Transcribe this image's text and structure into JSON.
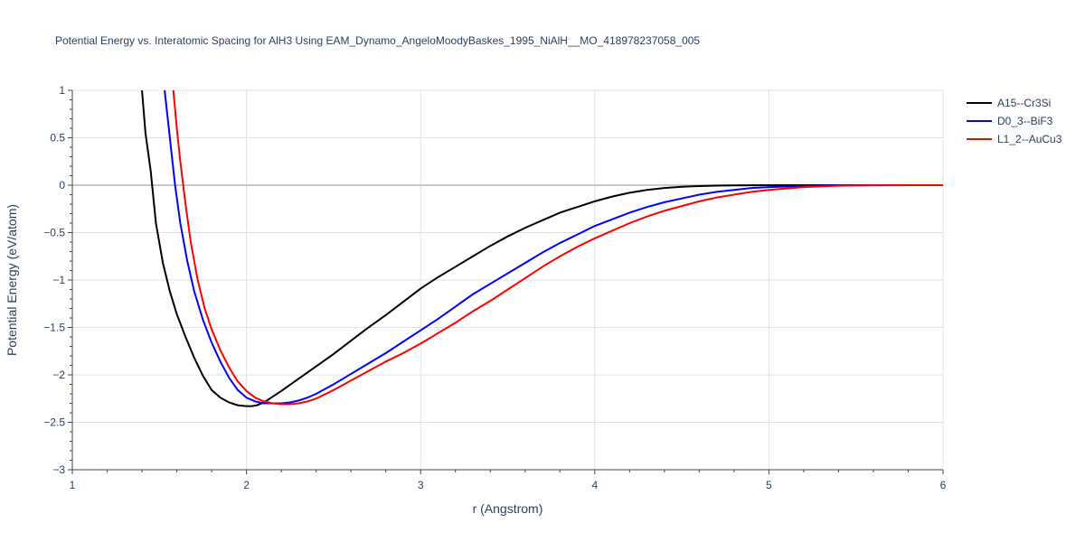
{
  "chart_data": {
    "type": "line",
    "title": "Potential Energy vs. Interatomic Spacing for AlH3 Using EAM_Dynamo_AngeloMoodyBaskes_1995_NiAlH__MO_418978237058_005",
    "xlabel": "r (Angstrom)",
    "ylabel": "Potential Energy (eV/atom)",
    "xlim": [
      1,
      6
    ],
    "ylim": [
      -3,
      1
    ],
    "x_ticks": [
      1,
      2,
      3,
      4,
      5,
      6
    ],
    "x_tick_labels": [
      "1",
      "2",
      "3",
      "4",
      "5",
      "6"
    ],
    "y_ticks": [
      -3,
      -2.5,
      -2,
      -1.5,
      -1,
      -0.5,
      0,
      0.5,
      1
    ],
    "y_tick_labels": [
      "−3",
      "−2.5",
      "−2",
      "−1.5",
      "−1",
      "−0.5",
      "0",
      "0.5",
      "1"
    ],
    "grid": true,
    "legend_position": "top-right",
    "series": [
      {
        "name": "A15--Cr3Si",
        "color": "#000000",
        "x": [
          1.4,
          1.42,
          1.45,
          1.48,
          1.52,
          1.56,
          1.6,
          1.65,
          1.7,
          1.75,
          1.8,
          1.85,
          1.9,
          1.95,
          2.0,
          2.03,
          2.06,
          2.1,
          2.15,
          2.2,
          2.3,
          2.4,
          2.5,
          2.6,
          2.7,
          2.8,
          2.9,
          3.0,
          3.1,
          3.2,
          3.3,
          3.4,
          3.5,
          3.6,
          3.7,
          3.8,
          3.9,
          4.0,
          4.1,
          4.2,
          4.3,
          4.4,
          4.5,
          4.6,
          4.7,
          4.8,
          4.9,
          5.0,
          5.2,
          5.4,
          5.6,
          5.8,
          6.0
        ],
        "y": [
          1.0,
          0.55,
          0.15,
          -0.4,
          -0.82,
          -1.12,
          -1.36,
          -1.6,
          -1.82,
          -2.01,
          -2.16,
          -2.24,
          -2.29,
          -2.32,
          -2.33,
          -2.33,
          -2.32,
          -2.29,
          -2.23,
          -2.17,
          -2.04,
          -1.91,
          -1.78,
          -1.64,
          -1.5,
          -1.37,
          -1.23,
          -1.09,
          -0.97,
          -0.86,
          -0.75,
          -0.64,
          -0.54,
          -0.45,
          -0.37,
          -0.29,
          -0.23,
          -0.17,
          -0.12,
          -0.08,
          -0.05,
          -0.03,
          -0.017,
          -0.009,
          -0.005,
          -0.002,
          -0.001,
          0.0,
          0.0,
          0.0,
          0.0,
          0.0,
          0.0
        ]
      },
      {
        "name": "D0_3--BiF3",
        "color": "#0000ff",
        "x": [
          1.53,
          1.56,
          1.59,
          1.62,
          1.66,
          1.7,
          1.75,
          1.8,
          1.85,
          1.9,
          1.95,
          2.0,
          2.05,
          2.1,
          2.15,
          2.2,
          2.25,
          2.3,
          2.35,
          2.4,
          2.5,
          2.6,
          2.7,
          2.8,
          2.9,
          3.0,
          3.1,
          3.2,
          3.3,
          3.4,
          3.5,
          3.6,
          3.7,
          3.8,
          3.9,
          4.0,
          4.1,
          4.2,
          4.3,
          4.4,
          4.5,
          4.6,
          4.7,
          4.8,
          4.9,
          5.0,
          5.2,
          5.4,
          5.6,
          5.8,
          6.0
        ],
        "y": [
          1.0,
          0.5,
          0.0,
          -0.4,
          -0.8,
          -1.12,
          -1.42,
          -1.66,
          -1.86,
          -2.03,
          -2.16,
          -2.24,
          -2.28,
          -2.3,
          -2.3,
          -2.3,
          -2.29,
          -2.27,
          -2.24,
          -2.2,
          -2.1,
          -1.99,
          -1.88,
          -1.77,
          -1.65,
          -1.53,
          -1.41,
          -1.28,
          -1.15,
          -1.04,
          -0.93,
          -0.82,
          -0.71,
          -0.61,
          -0.52,
          -0.43,
          -0.36,
          -0.29,
          -0.23,
          -0.18,
          -0.14,
          -0.1,
          -0.07,
          -0.05,
          -0.03,
          -0.02,
          -0.008,
          -0.003,
          -0.001,
          0.0,
          0.0
        ]
      },
      {
        "name": "L1_2--AuCu3",
        "color": "#ff0000",
        "x": [
          1.58,
          1.6,
          1.62,
          1.65,
          1.68,
          1.72,
          1.76,
          1.8,
          1.85,
          1.9,
          1.95,
          2.0,
          2.05,
          2.1,
          2.15,
          2.2,
          2.25,
          2.3,
          2.35,
          2.4,
          2.5,
          2.6,
          2.7,
          2.8,
          2.9,
          3.0,
          3.1,
          3.2,
          3.3,
          3.4,
          3.5,
          3.6,
          3.7,
          3.8,
          3.9,
          4.0,
          4.1,
          4.2,
          4.3,
          4.4,
          4.5,
          4.6,
          4.7,
          4.8,
          4.9,
          5.0,
          5.2,
          5.4,
          5.6,
          5.8,
          6.0
        ],
        "y": [
          1.0,
          0.6,
          0.25,
          -0.2,
          -0.6,
          -1.0,
          -1.3,
          -1.52,
          -1.74,
          -1.92,
          -2.07,
          -2.17,
          -2.24,
          -2.28,
          -2.3,
          -2.31,
          -2.31,
          -2.3,
          -2.28,
          -2.25,
          -2.16,
          -2.06,
          -1.96,
          -1.86,
          -1.77,
          -1.67,
          -1.56,
          -1.45,
          -1.33,
          -1.22,
          -1.1,
          -0.98,
          -0.86,
          -0.75,
          -0.65,
          -0.56,
          -0.48,
          -0.4,
          -0.33,
          -0.27,
          -0.22,
          -0.17,
          -0.13,
          -0.1,
          -0.07,
          -0.05,
          -0.02,
          -0.006,
          -0.001,
          0.0,
          0.0
        ]
      }
    ]
  }
}
